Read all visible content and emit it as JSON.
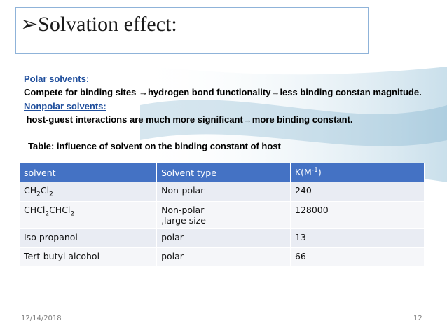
{
  "title": "➢Solvation effect:",
  "lines": [
    "Polar solvents:",
    "Compete for binding sites →hydrogen bond functionality→less binding constan magnitude.",
    "Nonpolar solvents:",
    " host-guest interactions are much more significant→more binding constant."
  ],
  "caption": "Table: influence of solvent on the binding constant of host",
  "table": {
    "header": [
      "solvent",
      "Solvent type",
      [
        {
          "text": "K(M"
        },
        {
          "sup": "-1"
        },
        {
          "text": ")"
        }
      ]
    ],
    "rows": [
      [
        [
          {
            "text": "CH"
          },
          {
            "sub": "2"
          },
          {
            "text": "Cl"
          },
          {
            "sub": "2"
          }
        ],
        "Non-polar",
        "240"
      ],
      [
        [
          {
            "text": "CHCl"
          },
          {
            "sub": "2"
          },
          {
            "text": "CHCl"
          },
          {
            "sub": "2"
          }
        ],
        [
          "Non-polar",
          ",large size"
        ],
        "128000"
      ],
      [
        "Iso propanol",
        "polar",
        "13"
      ],
      [
        "Tert-butyl alcohol",
        "polar",
        "66"
      ]
    ]
  },
  "footer": {
    "date": "12/14/2018",
    "page": "12"
  }
}
